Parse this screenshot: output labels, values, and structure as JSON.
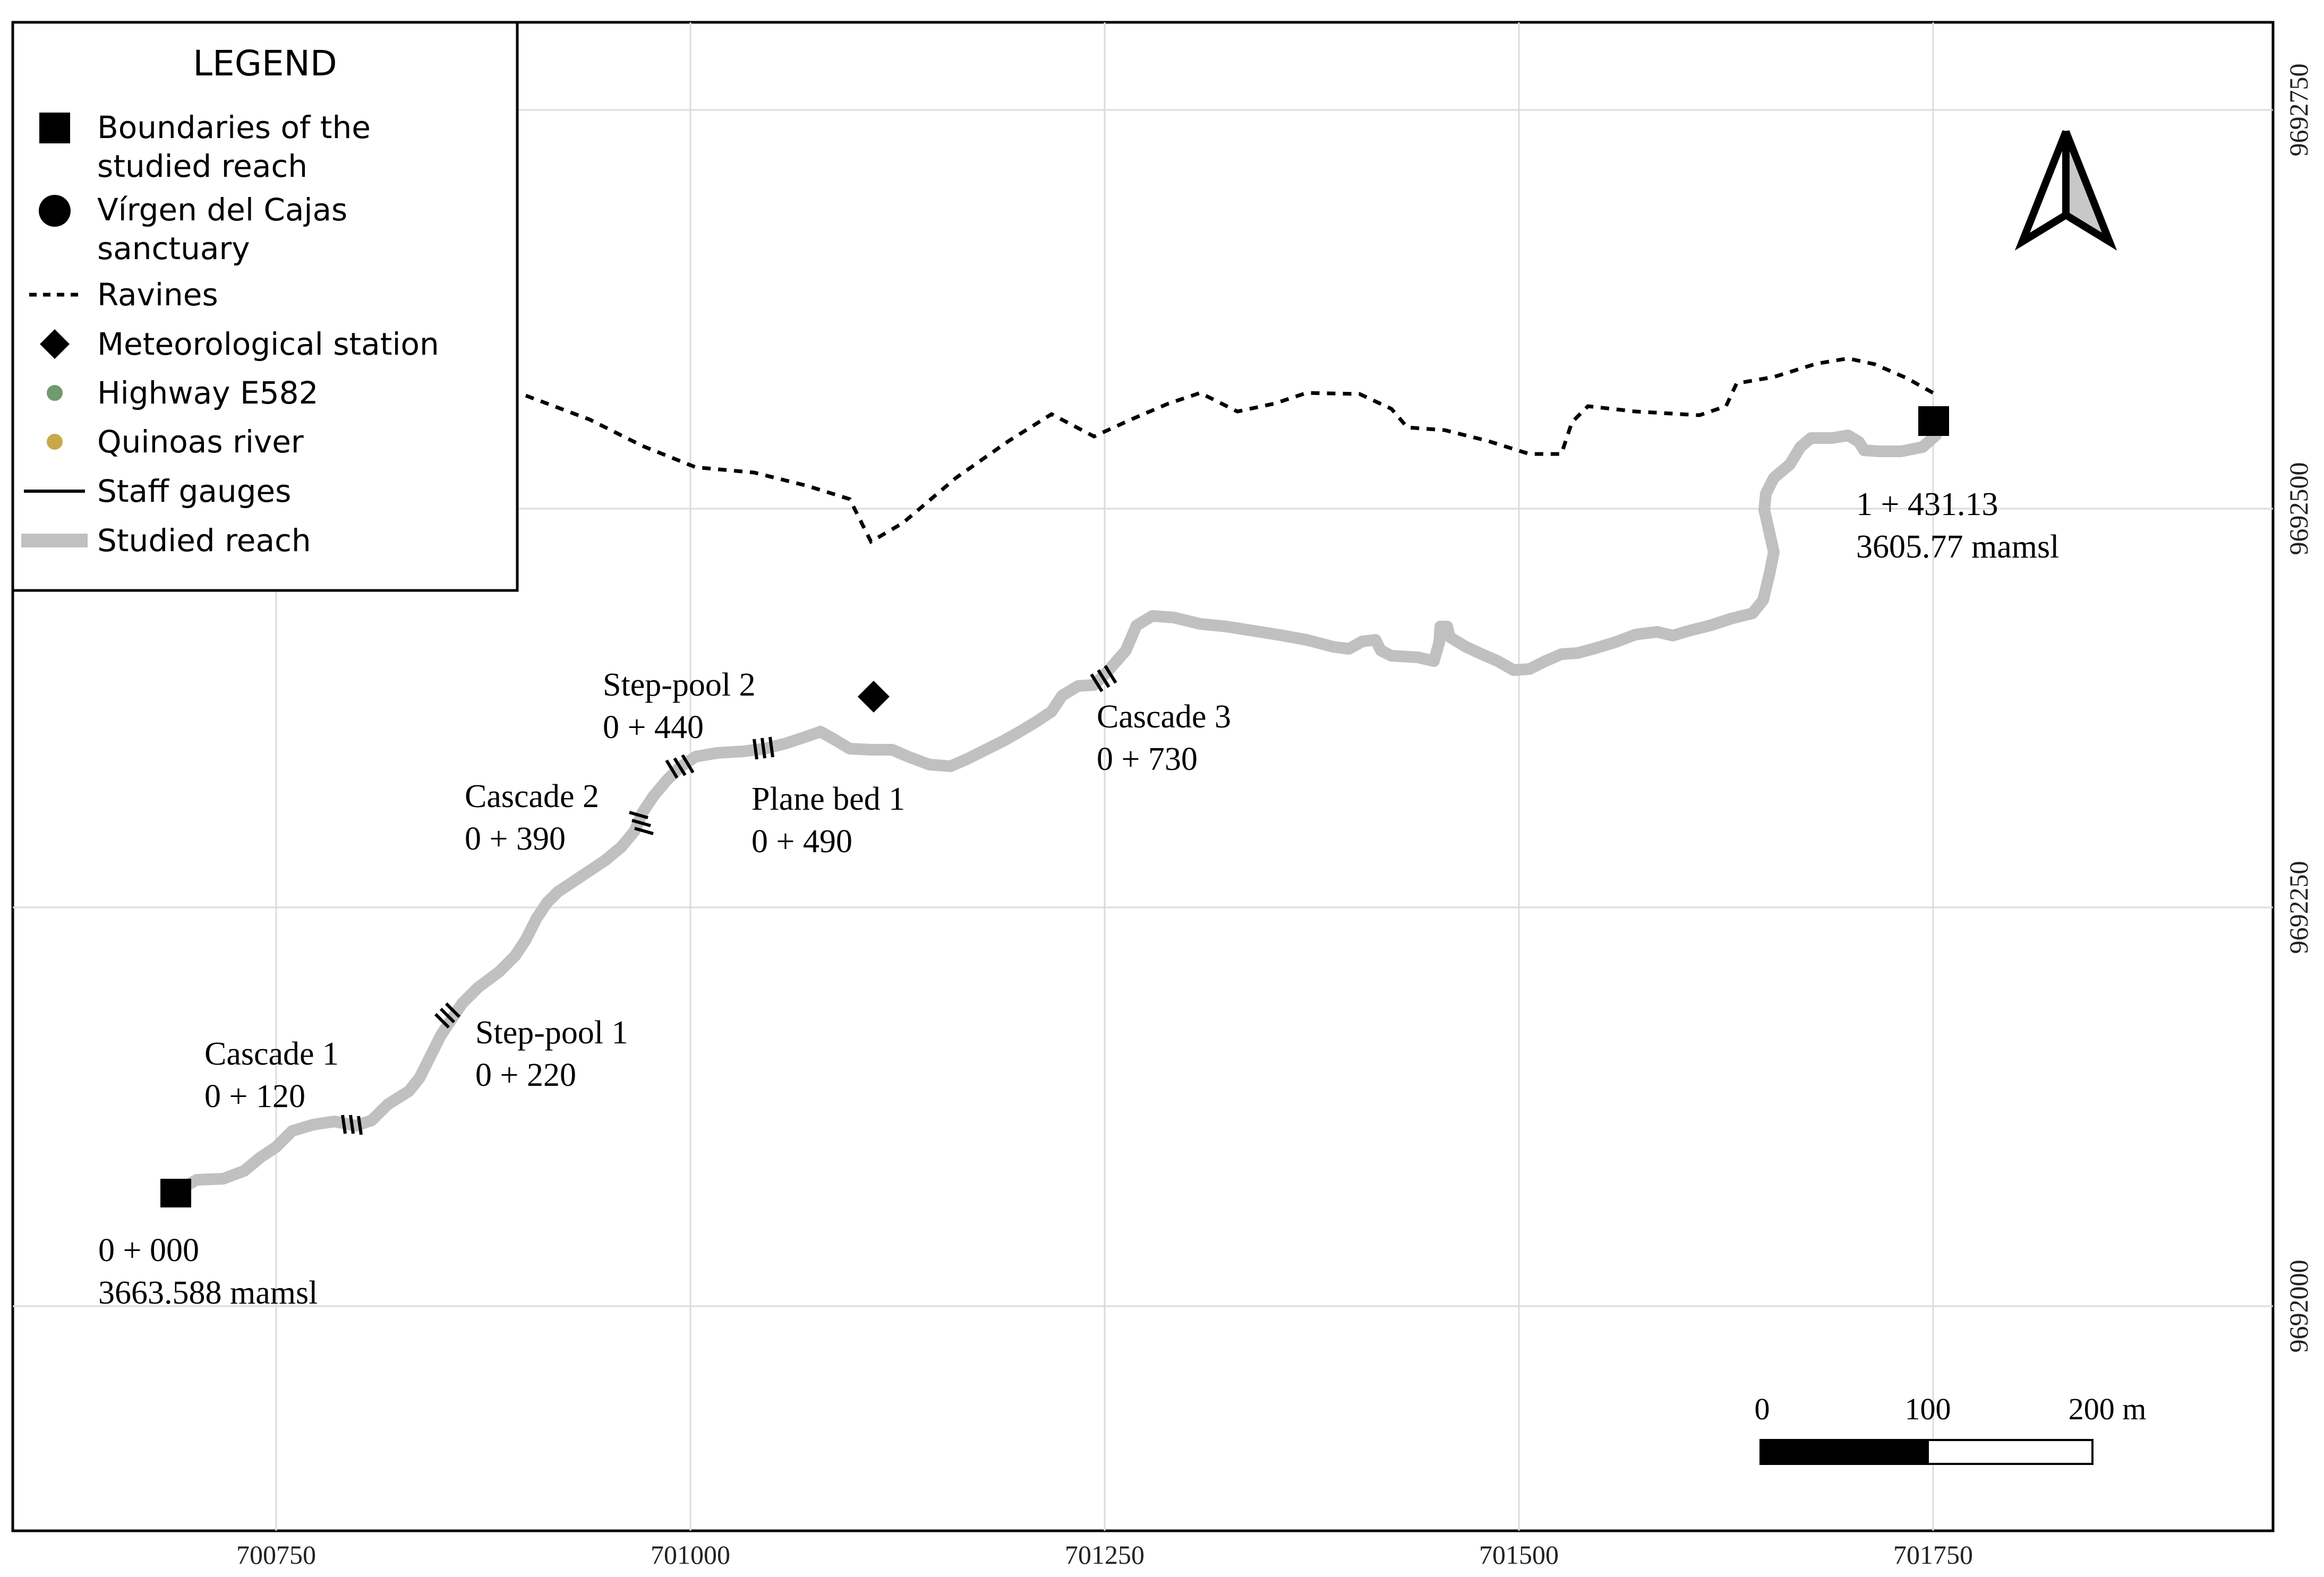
{
  "legend": {
    "title": "LEGEND",
    "items": [
      {
        "symbol": "square",
        "lines": [
          "Boundaries of the",
          "studied reach"
        ]
      },
      {
        "symbol": "circle",
        "lines": [
          "Vírgen del Cajas",
          "sanctuary"
        ]
      },
      {
        "symbol": "dotted-line",
        "lines": [
          "Ravines"
        ]
      },
      {
        "symbol": "diamond",
        "lines": [
          "Meteorological station"
        ]
      },
      {
        "symbol": "green-dot",
        "color": "#6f9b6f",
        "lines": [
          "Highway E582"
        ]
      },
      {
        "symbol": "yellow-dot",
        "color": "#c8a94a",
        "lines": [
          "Quinoas river"
        ]
      },
      {
        "symbol": "solid-line",
        "lines": [
          "Staff gauges"
        ]
      },
      {
        "symbol": "thick-grey-line",
        "color": "#c0c0c0",
        "lines": [
          "Studied reach"
        ]
      }
    ]
  },
  "axes": {
    "x_ticks": [
      "700750",
      "701000",
      "701250",
      "701500",
      "701750"
    ],
    "y_ticks": [
      "9692750",
      "9692500",
      "9692250",
      "9692000"
    ]
  },
  "labels": {
    "start_station": "0 + 000",
    "start_elevation": "3663.588 mamsl",
    "end_station": "1 + 431.13",
    "end_elevation": "3605.77 mamsl",
    "features": [
      {
        "name": "Cascade 1",
        "station": "0 + 120"
      },
      {
        "name": "Step-pool 1",
        "station": "0 + 220"
      },
      {
        "name": "Cascade 2",
        "station": "0 + 390"
      },
      {
        "name": "Step-pool 2",
        "station": "0 + 440"
      },
      {
        "name": "Plane bed 1",
        "station": "0 + 490"
      },
      {
        "name": "Cascade 3",
        "station": "0 + 730"
      }
    ]
  },
  "scale_bar": {
    "labels": [
      "0",
      "100",
      "200 m"
    ]
  },
  "north_arrow": {
    "icon": "north-arrow-icon"
  },
  "colors": {
    "studied_reach": "#c0c0c0",
    "grid": "#dcdcdc"
  }
}
